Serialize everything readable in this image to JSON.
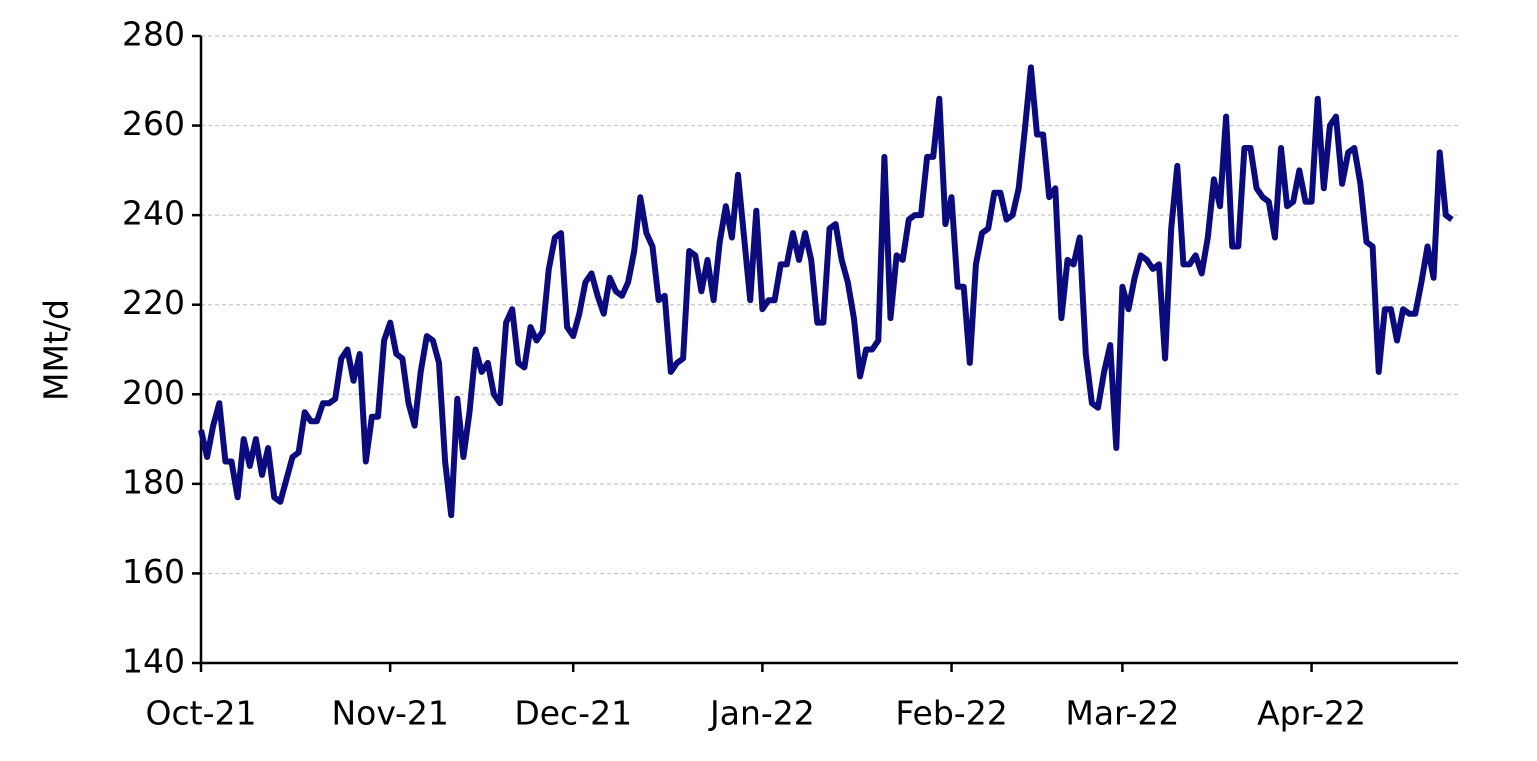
{
  "chart_data": {
    "type": "line",
    "y_label": "MMt/d",
    "categories": [
      "Oct-21",
      null,
      null,
      null,
      null,
      null,
      null,
      null,
      null,
      null,
      null,
      null,
      null,
      null,
      null,
      null,
      null,
      null,
      null,
      null,
      null,
      null,
      null,
      null,
      null,
      null,
      null,
      null,
      null,
      null,
      null,
      "Nov-21",
      null,
      null,
      null,
      null,
      null,
      null,
      null,
      null,
      null,
      null,
      null,
      null,
      null,
      null,
      null,
      null,
      null,
      null,
      null,
      null,
      null,
      null,
      null,
      null,
      null,
      null,
      null,
      null,
      null,
      "Dec-21",
      null,
      null,
      null,
      null,
      null,
      null,
      null,
      null,
      null,
      null,
      null,
      null,
      null,
      null,
      null,
      null,
      null,
      null,
      null,
      null,
      null,
      null,
      null,
      null,
      null,
      null,
      null,
      null,
      null,
      null,
      "Jan-22",
      null,
      null,
      null,
      null,
      null,
      null,
      null,
      null,
      null,
      null,
      null,
      null,
      null,
      null,
      null,
      null,
      null,
      null,
      null,
      null,
      null,
      null,
      null,
      null,
      null,
      null,
      null,
      null,
      null,
      null,
      "Feb-22",
      null,
      null,
      null,
      null,
      null,
      null,
      null,
      null,
      null,
      null,
      null,
      null,
      null,
      null,
      null,
      null,
      null,
      null,
      null,
      null,
      null,
      null,
      null,
      null,
      null,
      null,
      null,
      "Mar-22",
      null,
      null,
      null,
      null,
      null,
      null,
      null,
      null,
      null,
      null,
      null,
      null,
      null,
      null,
      null,
      null,
      null,
      null,
      null,
      null,
      null,
      null,
      null,
      null,
      null,
      null,
      null,
      null,
      null,
      null,
      "Apr-22",
      null,
      null,
      null,
      null,
      null,
      null,
      null,
      null,
      null,
      null,
      null,
      null,
      null,
      null,
      null,
      null,
      null,
      null,
      null,
      null,
      null,
      null,
      null
    ],
    "values": [
      192,
      186,
      193,
      198,
      185,
      185,
      177,
      190,
      184,
      190,
      182,
      188,
      177,
      176,
      181,
      186,
      187,
      196,
      194,
      194,
      198,
      198,
      199,
      208,
      210,
      203,
      209,
      185,
      195,
      195,
      212,
      216,
      209,
      208,
      198,
      193,
      205,
      213,
      212,
      207,
      185,
      173,
      199,
      186,
      196,
      210,
      205,
      207,
      200,
      198,
      216,
      219,
      207,
      206,
      215,
      212,
      214,
      228,
      235,
      236,
      215,
      213,
      218,
      225,
      227,
      222,
      218,
      226,
      223,
      222,
      225,
      232,
      244,
      236,
      233,
      221,
      222,
      205,
      207,
      208,
      232,
      231,
      223,
      230,
      221,
      234,
      242,
      235,
      249,
      235,
      221,
      241,
      219,
      221,
      221,
      229,
      229,
      236,
      230,
      236,
      230,
      216,
      216,
      237,
      238,
      230,
      225,
      217,
      204,
      210,
      210,
      212,
      253,
      217,
      231,
      230,
      239,
      240,
      240,
      253,
      253,
      266,
      238,
      244,
      224,
      224,
      207,
      229,
      236,
      237,
      245,
      245,
      239,
      240,
      246,
      259,
      273,
      258,
      258,
      244,
      246,
      217,
      230,
      229,
      235,
      209,
      198,
      197,
      205,
      211,
      188,
      224,
      219,
      226,
      231,
      230,
      228,
      229,
      208,
      237,
      251,
      229,
      229,
      231,
      227,
      235,
      248,
      242,
      262,
      233,
      233,
      255,
      255,
      246,
      244,
      243,
      235,
      255,
      242,
      243,
      250,
      243,
      243,
      266,
      246,
      260,
      262,
      247,
      254,
      255,
      247,
      234,
      233,
      205,
      219,
      219,
      212,
      219,
      218,
      218,
      225,
      233,
      226,
      254,
      240,
      239
    ],
    "color": "#0b0b7e",
    "ylim": [
      140,
      280
    ],
    "yticks": [
      140,
      160,
      180,
      200,
      220,
      240,
      260,
      280
    ],
    "grid": true
  }
}
